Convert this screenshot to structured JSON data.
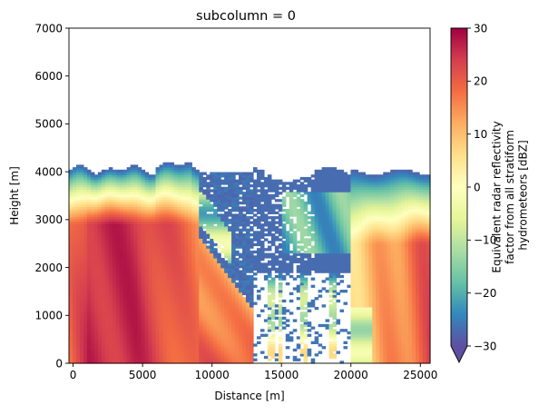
{
  "chart_data": {
    "type": "heatmap",
    "title": "subcolumn = 0",
    "xlabel": "Distance [m]",
    "ylabel": "Height [m]",
    "xlim": [
      -300,
      25700
    ],
    "ylim": [
      0,
      7000
    ],
    "x_ticks": [
      0,
      5000,
      10000,
      15000,
      20000,
      25000
    ],
    "y_ticks": [
      0,
      1000,
      2000,
      3000,
      4000,
      5000,
      6000,
      7000
    ],
    "x_tick_labels": [
      "0",
      "5000",
      "10000",
      "15000",
      "20000",
      "25000"
    ],
    "y_tick_labels": [
      "0",
      "1000",
      "2000",
      "3000",
      "4000",
      "5000",
      "6000",
      "7000"
    ],
    "grid": false,
    "colormap": "Spectral_r",
    "missing_values": "white",
    "description": "2-D field of equivalent radar reflectivity vs distance and height; strong echo (20–28 dBZ) near the surface at 0–9000 m and 23000–25500 m, weak echo (-30 dBZ) aloft near 3800–4200 m and in a broken region between 10000 and 20000 m",
    "colorbar": {
      "label_lines": [
        "Equivalent radar reflectivity",
        "factor from all stratiform",
        "hydrometeors [dBZ]"
      ],
      "vmin": -30,
      "vmax": 30,
      "ticks": [
        -30,
        -20,
        -10,
        0,
        10,
        20,
        30
      ],
      "tick_labels": [
        "−30",
        "−20",
        "−10",
        "0",
        "10",
        "20",
        "30"
      ],
      "extend": "min",
      "colors": [
        "#5e4fa2",
        "#3288bd",
        "#66c2a5",
        "#abdda4",
        "#e6f598",
        "#ffffbf",
        "#fee08b",
        "#fdae61",
        "#f46d43",
        "#d53e4f",
        "#9e0142"
      ]
    }
  }
}
